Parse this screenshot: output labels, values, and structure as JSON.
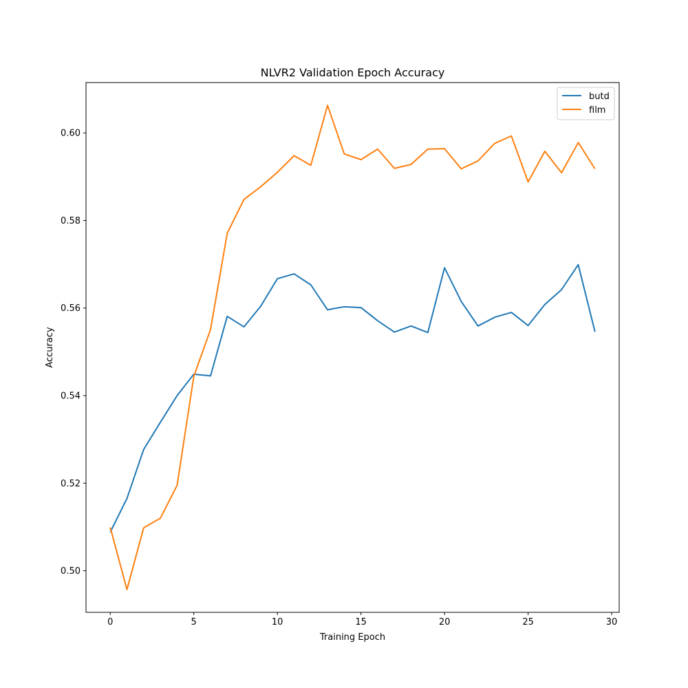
{
  "chart_data": {
    "type": "line",
    "title": "NLVR2 Validation Epoch Accuracy",
    "xlabel": "Training Epoch",
    "ylabel": "Accuracy",
    "xlim": [
      -1.45,
      30.45
    ],
    "ylim": [
      0.4905,
      0.6115
    ],
    "x_ticks": [
      0,
      5,
      10,
      15,
      20,
      25,
      30
    ],
    "x_tick_labels": [
      "0",
      "5",
      "10",
      "15",
      "20",
      "25",
      "30"
    ],
    "y_ticks": [
      0.5,
      0.52,
      0.54,
      0.56,
      0.58,
      0.6
    ],
    "y_tick_labels": [
      "0.50",
      "0.52",
      "0.54",
      "0.56",
      "0.58",
      "0.60"
    ],
    "grid": false,
    "legend_position": "top-right",
    "x": [
      0,
      1,
      2,
      3,
      4,
      5,
      6,
      7,
      8,
      9,
      10,
      11,
      12,
      13,
      14,
      15,
      16,
      17,
      18,
      19,
      20,
      21,
      22,
      23,
      24,
      25,
      26,
      27,
      28,
      29
    ],
    "series": [
      {
        "name": "butd",
        "color": "#1f77b4",
        "values": [
          0.5088,
          0.5165,
          0.5277,
          0.5339,
          0.54,
          0.5449,
          0.5445,
          0.5581,
          0.5557,
          0.5604,
          0.5667,
          0.5678,
          0.5653,
          0.5596,
          0.5603,
          0.5601,
          0.5571,
          0.5545,
          0.5559,
          0.5544,
          0.5692,
          0.5615,
          0.5559,
          0.5579,
          0.559,
          0.556,
          0.5608,
          0.5642,
          0.5699,
          0.5546
        ]
      },
      {
        "name": "film",
        "color": "#ff7f0e",
        "values": [
          0.5099,
          0.4957,
          0.5098,
          0.512,
          0.5195,
          0.5444,
          0.5551,
          0.5771,
          0.5848,
          0.5877,
          0.591,
          0.5948,
          0.5926,
          0.6063,
          0.5952,
          0.5939,
          0.5963,
          0.5919,
          0.5928,
          0.5963,
          0.5964,
          0.5918,
          0.5936,
          0.5976,
          0.5993,
          0.5888,
          0.5958,
          0.5909,
          0.5978,
          0.5918
        ]
      }
    ]
  }
}
